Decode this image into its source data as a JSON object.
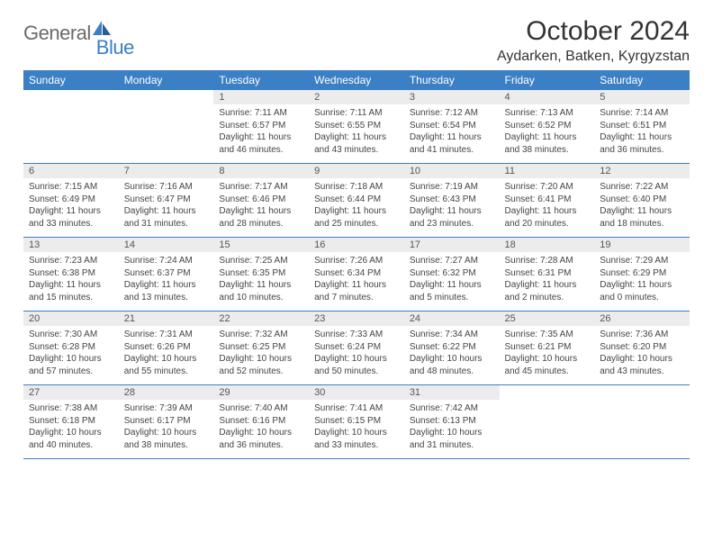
{
  "logo": {
    "part1": "General",
    "part2": "Blue"
  },
  "title": "October 2024",
  "location": "Aydarken, Batken, Kyrgyzstan",
  "colors": {
    "header_bg": "#3b7fc4",
    "header_text": "#ffffff",
    "daynum_bg": "#ececec",
    "border": "#3b7fc4",
    "logo_gray": "#6b6b6b",
    "logo_blue": "#3b7fc4",
    "page_bg": "#ffffff",
    "text": "#333333"
  },
  "day_headers": [
    "Sunday",
    "Monday",
    "Tuesday",
    "Wednesday",
    "Thursday",
    "Friday",
    "Saturday"
  ],
  "weeks": [
    [
      null,
      null,
      {
        "n": "1",
        "sunrise": "7:11 AM",
        "sunset": "6:57 PM",
        "daylight": "11 hours and 46 minutes."
      },
      {
        "n": "2",
        "sunrise": "7:11 AM",
        "sunset": "6:55 PM",
        "daylight": "11 hours and 43 minutes."
      },
      {
        "n": "3",
        "sunrise": "7:12 AM",
        "sunset": "6:54 PM",
        "daylight": "11 hours and 41 minutes."
      },
      {
        "n": "4",
        "sunrise": "7:13 AM",
        "sunset": "6:52 PM",
        "daylight": "11 hours and 38 minutes."
      },
      {
        "n": "5",
        "sunrise": "7:14 AM",
        "sunset": "6:51 PM",
        "daylight": "11 hours and 36 minutes."
      }
    ],
    [
      {
        "n": "6",
        "sunrise": "7:15 AM",
        "sunset": "6:49 PM",
        "daylight": "11 hours and 33 minutes."
      },
      {
        "n": "7",
        "sunrise": "7:16 AM",
        "sunset": "6:47 PM",
        "daylight": "11 hours and 31 minutes."
      },
      {
        "n": "8",
        "sunrise": "7:17 AM",
        "sunset": "6:46 PM",
        "daylight": "11 hours and 28 minutes."
      },
      {
        "n": "9",
        "sunrise": "7:18 AM",
        "sunset": "6:44 PM",
        "daylight": "11 hours and 25 minutes."
      },
      {
        "n": "10",
        "sunrise": "7:19 AM",
        "sunset": "6:43 PM",
        "daylight": "11 hours and 23 minutes."
      },
      {
        "n": "11",
        "sunrise": "7:20 AM",
        "sunset": "6:41 PM",
        "daylight": "11 hours and 20 minutes."
      },
      {
        "n": "12",
        "sunrise": "7:22 AM",
        "sunset": "6:40 PM",
        "daylight": "11 hours and 18 minutes."
      }
    ],
    [
      {
        "n": "13",
        "sunrise": "7:23 AM",
        "sunset": "6:38 PM",
        "daylight": "11 hours and 15 minutes."
      },
      {
        "n": "14",
        "sunrise": "7:24 AM",
        "sunset": "6:37 PM",
        "daylight": "11 hours and 13 minutes."
      },
      {
        "n": "15",
        "sunrise": "7:25 AM",
        "sunset": "6:35 PM",
        "daylight": "11 hours and 10 minutes."
      },
      {
        "n": "16",
        "sunrise": "7:26 AM",
        "sunset": "6:34 PM",
        "daylight": "11 hours and 7 minutes."
      },
      {
        "n": "17",
        "sunrise": "7:27 AM",
        "sunset": "6:32 PM",
        "daylight": "11 hours and 5 minutes."
      },
      {
        "n": "18",
        "sunrise": "7:28 AM",
        "sunset": "6:31 PM",
        "daylight": "11 hours and 2 minutes."
      },
      {
        "n": "19",
        "sunrise": "7:29 AM",
        "sunset": "6:29 PM",
        "daylight": "11 hours and 0 minutes."
      }
    ],
    [
      {
        "n": "20",
        "sunrise": "7:30 AM",
        "sunset": "6:28 PM",
        "daylight": "10 hours and 57 minutes."
      },
      {
        "n": "21",
        "sunrise": "7:31 AM",
        "sunset": "6:26 PM",
        "daylight": "10 hours and 55 minutes."
      },
      {
        "n": "22",
        "sunrise": "7:32 AM",
        "sunset": "6:25 PM",
        "daylight": "10 hours and 52 minutes."
      },
      {
        "n": "23",
        "sunrise": "7:33 AM",
        "sunset": "6:24 PM",
        "daylight": "10 hours and 50 minutes."
      },
      {
        "n": "24",
        "sunrise": "7:34 AM",
        "sunset": "6:22 PM",
        "daylight": "10 hours and 48 minutes."
      },
      {
        "n": "25",
        "sunrise": "7:35 AM",
        "sunset": "6:21 PM",
        "daylight": "10 hours and 45 minutes."
      },
      {
        "n": "26",
        "sunrise": "7:36 AM",
        "sunset": "6:20 PM",
        "daylight": "10 hours and 43 minutes."
      }
    ],
    [
      {
        "n": "27",
        "sunrise": "7:38 AM",
        "sunset": "6:18 PM",
        "daylight": "10 hours and 40 minutes."
      },
      {
        "n": "28",
        "sunrise": "7:39 AM",
        "sunset": "6:17 PM",
        "daylight": "10 hours and 38 minutes."
      },
      {
        "n": "29",
        "sunrise": "7:40 AM",
        "sunset": "6:16 PM",
        "daylight": "10 hours and 36 minutes."
      },
      {
        "n": "30",
        "sunrise": "7:41 AM",
        "sunset": "6:15 PM",
        "daylight": "10 hours and 33 minutes."
      },
      {
        "n": "31",
        "sunrise": "7:42 AM",
        "sunset": "6:13 PM",
        "daylight": "10 hours and 31 minutes."
      },
      null,
      null
    ]
  ],
  "labels": {
    "sunrise": "Sunrise:",
    "sunset": "Sunset:",
    "daylight": "Daylight:"
  }
}
